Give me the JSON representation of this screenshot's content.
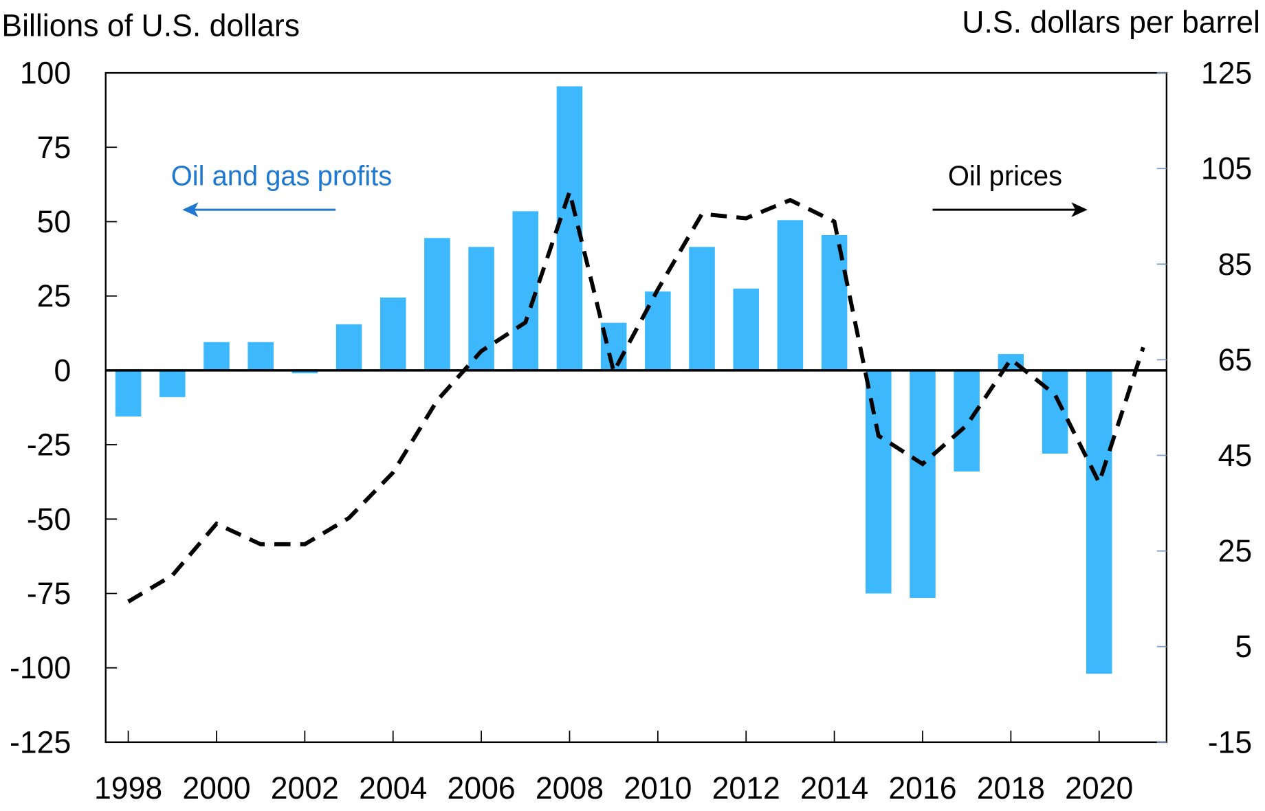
{
  "chart_data": {
    "type": "bar+line",
    "left_axis_title": "Billions of U.S. dollars",
    "right_axis_title": "U.S. dollars per barrel",
    "left_ylim": [
      -125,
      100
    ],
    "left_ticks": [
      100,
      75,
      50,
      25,
      0,
      -25,
      -50,
      -75,
      -100,
      -125
    ],
    "right_ylim": [
      -15,
      125
    ],
    "right_ticks": [
      125,
      105,
      85,
      65,
      45,
      25,
      5,
      -15
    ],
    "x_tick_labels": [
      "1998",
      "2000",
      "2002",
      "2004",
      "2006",
      "2008",
      "2010",
      "2012",
      "2014",
      "2016",
      "2018",
      "2020"
    ],
    "grid": false,
    "colors": {
      "bars": "#3DB8FC",
      "line": "#000000",
      "bar_label": "#1E78D0"
    },
    "series": [
      {
        "name": "Oil and gas profits",
        "axis": "left",
        "type": "bar",
        "x": [
          1998,
          1999,
          2000,
          2001,
          2002,
          2003,
          2004,
          2005,
          2006,
          2007,
          2008,
          2009,
          2010,
          2011,
          2012,
          2013,
          2014,
          2015,
          2016,
          2017,
          2018,
          2019,
          2020
        ],
        "values": [
          -15.5,
          -9,
          9.5,
          9.5,
          -1,
          15.5,
          24.5,
          44.5,
          41.5,
          53.5,
          95.5,
          16,
          26.5,
          41.5,
          27.5,
          50.5,
          45.5,
          -75,
          -76.5,
          -34,
          5.5,
          -28,
          -102
        ]
      },
      {
        "name": "Oil prices",
        "axis": "right",
        "type": "line",
        "style": "dashed",
        "x": [
          1998,
          1999,
          2000,
          2001,
          2002,
          2003,
          2004,
          2005,
          2006,
          2007,
          2008,
          2009,
          2010,
          2011,
          2012,
          2013,
          2014,
          2015,
          2016,
          2017,
          2018,
          2019,
          2020,
          2021
        ],
        "values": [
          14.4,
          19.9,
          30.7,
          26.4,
          26.4,
          31.9,
          41.4,
          56.5,
          66.8,
          72.8,
          100.1,
          62.5,
          79.7,
          95.5,
          94.6,
          98.4,
          93.9,
          49.1,
          43.2,
          51.3,
          65.1,
          57.7,
          39.3,
          67.6
        ]
      }
    ]
  }
}
